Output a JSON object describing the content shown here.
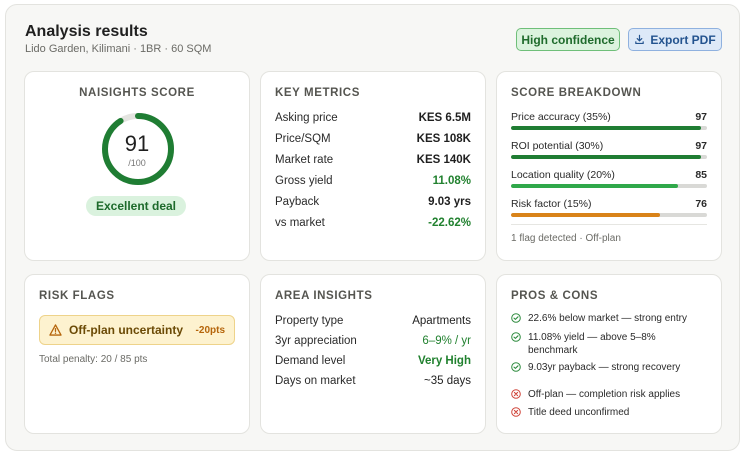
{
  "header": {
    "title": "Analysis results",
    "subtitle": "Lido Garden, Kilimani · 1BR · 60 SQM",
    "confidence_badge": "High confidence",
    "export_button": "Export PDF"
  },
  "score": {
    "heading": "NAISIGHTS SCORE",
    "value": "91",
    "denominator": "/100",
    "fraction": 0.91,
    "verdict": "Excellent deal",
    "ring_color": "#1f7d33"
  },
  "key_metrics": {
    "heading": "KEY METRICS",
    "rows": [
      {
        "label": "Asking price",
        "value": "KES 6.5M"
      },
      {
        "label": "Price/SQM",
        "value": "KES 108K"
      },
      {
        "label": "Market rate",
        "value": "KES 140K"
      },
      {
        "label": "Gross yield",
        "value": "11.08%"
      },
      {
        "label": "Payback",
        "value": "9.03 yrs"
      },
      {
        "label": "vs market",
        "value": "-22.62%"
      }
    ]
  },
  "breakdown": {
    "heading": "SCORE BREAKDOWN",
    "items": [
      {
        "label": "Price accuracy (35%)",
        "value": "97",
        "fraction": 0.97,
        "color": "#1f7d33"
      },
      {
        "label": "ROI potential (30%)",
        "value": "97",
        "fraction": 0.97,
        "color": "#1f7d33"
      },
      {
        "label": "Location quality (20%)",
        "value": "85",
        "fraction": 0.85,
        "color": "#2fa84a"
      },
      {
        "label": "Risk factor (15%)",
        "value": "76",
        "fraction": 0.76,
        "color": "#d98319"
      }
    ],
    "footer": "1 flag detected · Off-plan"
  },
  "risk_flags": {
    "heading": "RISK FLAGS",
    "flag_label": "Off-plan uncertainty",
    "flag_points": "-20pts",
    "penalty": "Total penalty: 20 / 85 pts"
  },
  "area_insights": {
    "heading": "AREA INSIGHTS",
    "rows": [
      {
        "label": "Property type",
        "value": "Apartments"
      },
      {
        "label": "3yr appreciation",
        "value": "6–9% / yr"
      },
      {
        "label": "Demand level",
        "value": "Very High"
      },
      {
        "label": "Days on market",
        "value": "~35 days"
      }
    ]
  },
  "pros_cons": {
    "heading": "PROS & CONS",
    "pros": [
      "22.6% below market — strong entry",
      "11.08% yield — above 5–8% benchmark",
      "9.03yr payback — strong recovery"
    ],
    "cons": [
      "Off-plan — completion risk applies",
      "Title deed unconfirmed"
    ],
    "pro_color": "#2e8b3e",
    "con_color": "#d0453a"
  }
}
